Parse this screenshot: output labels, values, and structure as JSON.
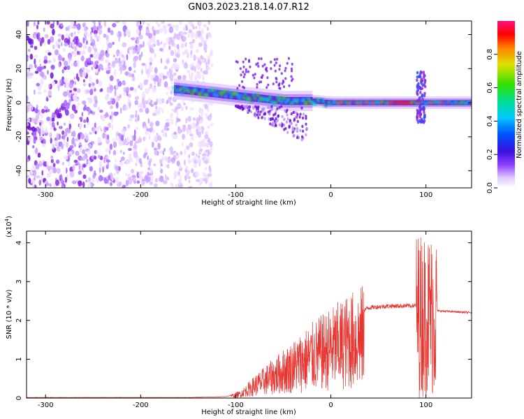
{
  "title": "GN03.2023.218.14.07.R12",
  "chart_data": [
    {
      "type": "heatmap",
      "xlabel": "Height of straight line (km)",
      "ylabel": "Frequency (Hz)",
      "xlim": [
        -320,
        148
      ],
      "ylim": [
        -50,
        48
      ],
      "xticks": [
        -300,
        -200,
        -100,
        0,
        100
      ],
      "yticks": [
        -40,
        -20,
        0,
        20,
        40
      ],
      "colorbar": {
        "label": "Normalized spectral amplitude",
        "range": [
          0.0,
          1.0
        ],
        "ticks": [
          0.0,
          0.2,
          0.4,
          0.6,
          0.8
        ],
        "tick_labels": [
          "0.0",
          "0.2",
          "0.4",
          "0.6",
          "0.8"
        ]
      },
      "features": {
        "noise_region_x": [
          -320,
          -125
        ],
        "band_track": [
          {
            "x": -165,
            "freq": 8
          },
          {
            "x": -100,
            "freq": 4
          },
          {
            "x": -50,
            "freq": 1
          },
          {
            "x": -20,
            "freq": 1
          },
          {
            "x": 0,
            "freq": 0
          },
          {
            "x": 50,
            "freq": 0
          },
          {
            "x": 100,
            "freq": 0
          },
          {
            "x": 148,
            "freq": 0
          }
        ],
        "burst_x": 95
      }
    },
    {
      "type": "line",
      "xlabel": "Height of straight line (km)",
      "ylabel": "SNR (10 * v/v)",
      "yscale_label": "(x10",
      "yscale_exp": "4",
      "yscale_close": ")",
      "xlim": [
        -320,
        148
      ],
      "ylim": [
        0,
        4.3
      ],
      "xticks": [
        -300,
        -200,
        -100,
        0,
        100
      ],
      "yticks": [
        0,
        1,
        2,
        3,
        4
      ],
      "color": "#e8332e",
      "envelope": [
        {
          "x": -320,
          "y": 0.01
        },
        {
          "x": -150,
          "y": 0.01
        },
        {
          "x": -110,
          "y": 0.03
        },
        {
          "x": -95,
          "y": 0.15
        },
        {
          "x": -80,
          "y": 0.45
        },
        {
          "x": -60,
          "y": 0.8
        },
        {
          "x": -40,
          "y": 1.15
        },
        {
          "x": -20,
          "y": 1.5
        },
        {
          "x": 0,
          "y": 1.8
        },
        {
          "x": 20,
          "y": 2.1
        },
        {
          "x": 40,
          "y": 2.33
        },
        {
          "x": 60,
          "y": 2.37
        },
        {
          "x": 90,
          "y": 2.38
        },
        {
          "x": 100,
          "y": 2.3
        },
        {
          "x": 110,
          "y": 2.25
        },
        {
          "x": 148,
          "y": 2.2
        }
      ]
    }
  ]
}
